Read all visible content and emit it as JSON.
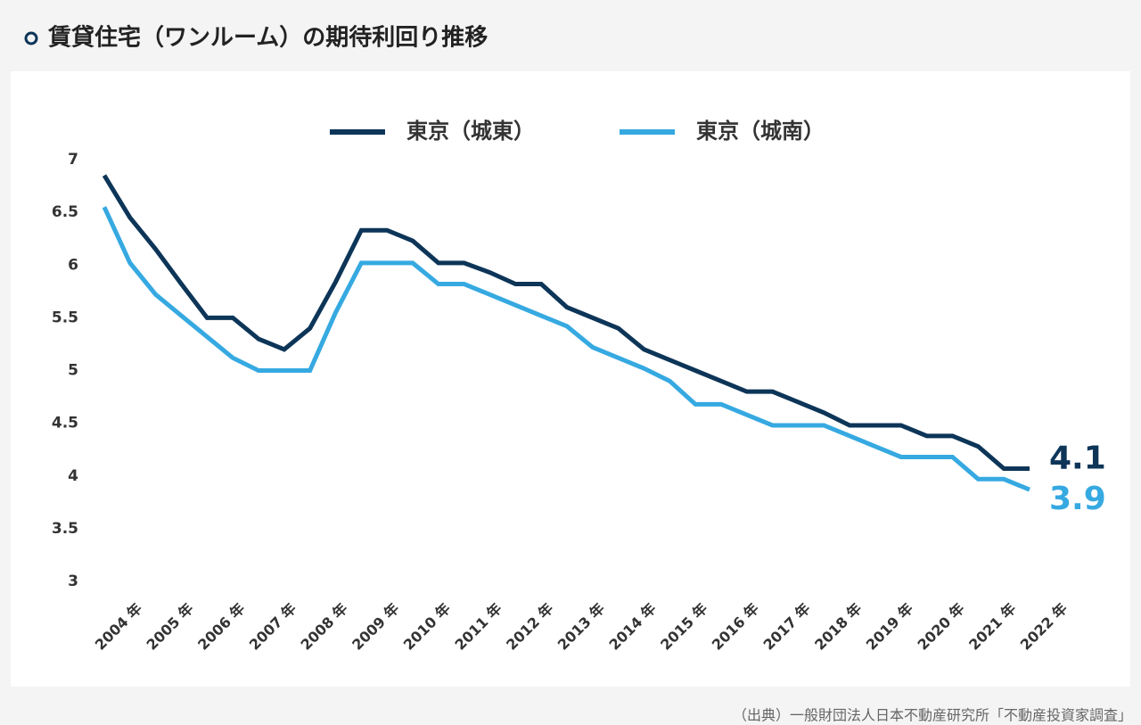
{
  "chart_data": {
    "type": "line",
    "title": "賃貸住宅（ワンルーム）の期待利回り推移",
    "source": "（出典）一般財団法人日本不動産研究所「不動産投資家調査」",
    "categories": [
      "2004 年",
      null,
      "2005 年",
      null,
      "2006 年",
      null,
      "2007 年",
      null,
      "2008 年",
      null,
      "2009 年",
      null,
      "2010 年",
      null,
      "2011 年",
      null,
      "2012 年",
      null,
      "2013 年",
      null,
      "2014 年",
      null,
      "2015 年",
      null,
      "2016 年",
      null,
      "2017 年",
      null,
      "2018 年",
      null,
      "2019 年",
      null,
      "2020 年",
      null,
      "2021 年",
      null,
      "2022 年"
    ],
    "series": [
      {
        "name": "東京（城東）",
        "color": "#0d3558",
        "end_label": "4.1",
        "values": [
          6.85,
          6.45,
          6.15,
          5.82,
          5.5,
          5.5,
          5.3,
          5.2,
          5.4,
          5.84,
          6.33,
          6.33,
          6.23,
          6.02,
          6.02,
          5.93,
          5.82,
          5.82,
          5.6,
          5.5,
          5.4,
          5.2,
          5.1,
          5.0,
          4.9,
          4.8,
          4.8,
          4.7,
          4.6,
          4.48,
          4.48,
          4.48,
          4.38,
          4.38,
          4.28,
          4.07,
          4.07
        ]
      },
      {
        "name": "東京（城南）",
        "color": "#36a9e1",
        "end_label": "3.9",
        "values": [
          6.55,
          6.02,
          5.72,
          5.52,
          5.32,
          5.12,
          5.0,
          5.0,
          5.0,
          5.55,
          6.02,
          6.02,
          6.02,
          5.82,
          5.82,
          5.72,
          5.62,
          5.52,
          5.42,
          5.22,
          5.12,
          5.02,
          4.9,
          4.68,
          4.68,
          4.58,
          4.48,
          4.48,
          4.48,
          4.38,
          4.28,
          4.18,
          4.18,
          4.18,
          3.97,
          3.97,
          3.87
        ]
      }
    ],
    "ylim": [
      3,
      7
    ],
    "yticks": [
      3,
      3.5,
      4,
      4.5,
      5,
      5.5,
      6,
      6.5,
      7
    ],
    "legend": "top"
  }
}
